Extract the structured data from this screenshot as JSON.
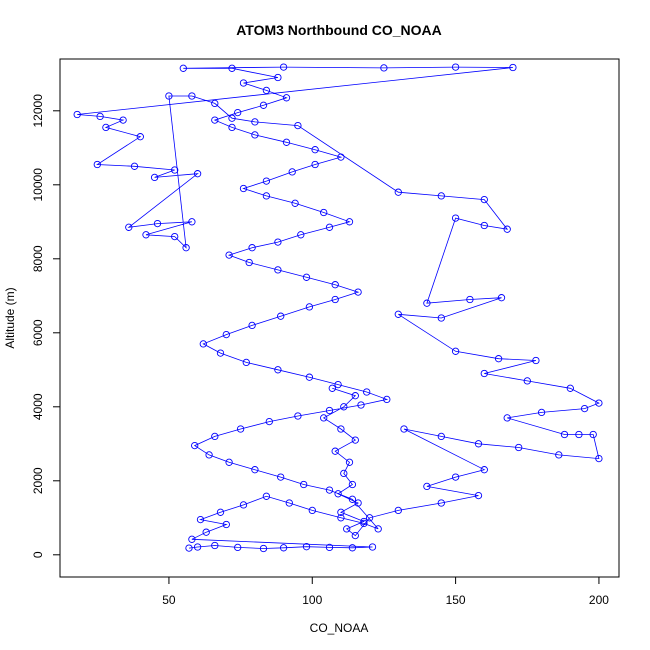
{
  "chart_data": {
    "type": "scatter",
    "title": "ATOM3 Northbound CO_NOAA",
    "xlabel": "CO_NOAA",
    "ylabel": "Altitude (m)",
    "xlim": [
      12,
      207
    ],
    "ylim": [
      -600,
      13400
    ],
    "x_ticks": [
      50,
      100,
      150,
      200
    ],
    "y_ticks": [
      0,
      2000,
      4000,
      6000,
      8000,
      10000,
      12000
    ],
    "grid": false,
    "legend": "none",
    "point_style": "open-circle-connected",
    "color": "#0000ff",
    "series": [
      {
        "points": [
          [
            57,
            180
          ],
          [
            60,
            210
          ],
          [
            66,
            250
          ],
          [
            74,
            200
          ],
          [
            83,
            170
          ],
          [
            90,
            190
          ],
          [
            98,
            220
          ],
          [
            106,
            200
          ],
          [
            114,
            190
          ],
          [
            121,
            210
          ],
          [
            58,
            420
          ],
          [
            63,
            610
          ],
          [
            70,
            820
          ],
          [
            61,
            950
          ],
          [
            68,
            1150
          ],
          [
            76,
            1350
          ],
          [
            84,
            1580
          ],
          [
            92,
            1400
          ],
          [
            100,
            1200
          ],
          [
            110,
            1000
          ],
          [
            118,
            850
          ],
          [
            123,
            700
          ],
          [
            114,
            1500
          ],
          [
            106,
            1750
          ],
          [
            97,
            1900
          ],
          [
            89,
            2100
          ],
          [
            80,
            2300
          ],
          [
            71,
            2500
          ],
          [
            64,
            2700
          ],
          [
            59,
            2950
          ],
          [
            66,
            3200
          ],
          [
            75,
            3400
          ],
          [
            85,
            3600
          ],
          [
            95,
            3750
          ],
          [
            106,
            3900
          ],
          [
            117,
            4050
          ],
          [
            126,
            4200
          ],
          [
            119,
            4400
          ],
          [
            109,
            4600
          ],
          [
            99,
            4800
          ],
          [
            88,
            5000
          ],
          [
            77,
            5200
          ],
          [
            68,
            5450
          ],
          [
            62,
            5700
          ],
          [
            70,
            5950
          ],
          [
            79,
            6200
          ],
          [
            89,
            6450
          ],
          [
            99,
            6700
          ],
          [
            108,
            6900
          ],
          [
            116,
            7100
          ],
          [
            108,
            7300
          ],
          [
            98,
            7500
          ],
          [
            88,
            7700
          ],
          [
            78,
            7900
          ],
          [
            71,
            8100
          ],
          [
            79,
            8300
          ],
          [
            88,
            8450
          ],
          [
            96,
            8650
          ],
          [
            106,
            8850
          ],
          [
            113,
            9000
          ],
          [
            104,
            9250
          ],
          [
            94,
            9500
          ],
          [
            84,
            9700
          ],
          [
            76,
            9900
          ],
          [
            84,
            10100
          ],
          [
            93,
            10350
          ],
          [
            101,
            10550
          ],
          [
            110,
            10750
          ],
          [
            101,
            10950
          ],
          [
            91,
            11150
          ],
          [
            80,
            11350
          ],
          [
            72,
            11550
          ],
          [
            66,
            11750
          ],
          [
            74,
            11950
          ],
          [
            83,
            12150
          ],
          [
            91,
            12350
          ],
          [
            84,
            12550
          ],
          [
            76,
            12750
          ],
          [
            88,
            12900
          ],
          [
            72,
            13150
          ],
          [
            55,
            13150
          ],
          [
            90,
            13180
          ],
          [
            125,
            13160
          ],
          [
            150,
            13180
          ],
          [
            170,
            13170
          ],
          [
            18,
            11900
          ],
          [
            26,
            11850
          ],
          [
            34,
            11750
          ],
          [
            28,
            11550
          ],
          [
            40,
            11300
          ],
          [
            25,
            10550
          ],
          [
            38,
            10500
          ],
          [
            52,
            10400
          ],
          [
            45,
            10200
          ],
          [
            60,
            10300
          ],
          [
            36,
            8850
          ],
          [
            46,
            8950
          ],
          [
            58,
            9000
          ],
          [
            42,
            8650
          ],
          [
            52,
            8600
          ],
          [
            56,
            8300
          ],
          [
            50,
            12400
          ],
          [
            58,
            12400
          ],
          [
            66,
            12200
          ],
          [
            72,
            11800
          ],
          [
            80,
            11700
          ],
          [
            95,
            11600
          ],
          [
            130,
            9800
          ],
          [
            145,
            9700
          ],
          [
            160,
            9600
          ],
          [
            168,
            8800
          ],
          [
            160,
            8900
          ],
          [
            150,
            9100
          ],
          [
            140,
            6800
          ],
          [
            155,
            6900
          ],
          [
            166,
            6950
          ],
          [
            145,
            6400
          ],
          [
            130,
            6500
          ],
          [
            150,
            5500
          ],
          [
            165,
            5300
          ],
          [
            178,
            5250
          ],
          [
            160,
            4900
          ],
          [
            175,
            4700
          ],
          [
            190,
            4500
          ],
          [
            200,
            4100
          ],
          [
            195,
            3950
          ],
          [
            180,
            3850
          ],
          [
            168,
            3700
          ],
          [
            188,
            3250
          ],
          [
            193,
            3250
          ],
          [
            198,
            3250
          ],
          [
            200,
            2600
          ],
          [
            186,
            2700
          ],
          [
            172,
            2900
          ],
          [
            158,
            3000
          ],
          [
            145,
            3200
          ],
          [
            132,
            3400
          ],
          [
            160,
            2300
          ],
          [
            150,
            2100
          ],
          [
            140,
            1850
          ],
          [
            158,
            1600
          ],
          [
            145,
            1400
          ],
          [
            130,
            1200
          ],
          [
            120,
            1000
          ],
          [
            115,
            520
          ],
          [
            112,
            700
          ],
          [
            118,
            900
          ],
          [
            110,
            1150
          ],
          [
            116,
            1400
          ],
          [
            109,
            1650
          ],
          [
            114,
            1900
          ],
          [
            111,
            2200
          ],
          [
            113,
            2500
          ],
          [
            108,
            2800
          ],
          [
            115,
            3100
          ],
          [
            110,
            3400
          ],
          [
            104,
            3700
          ],
          [
            111,
            4000
          ],
          [
            115,
            4300
          ],
          [
            107,
            4500
          ]
        ]
      }
    ]
  }
}
